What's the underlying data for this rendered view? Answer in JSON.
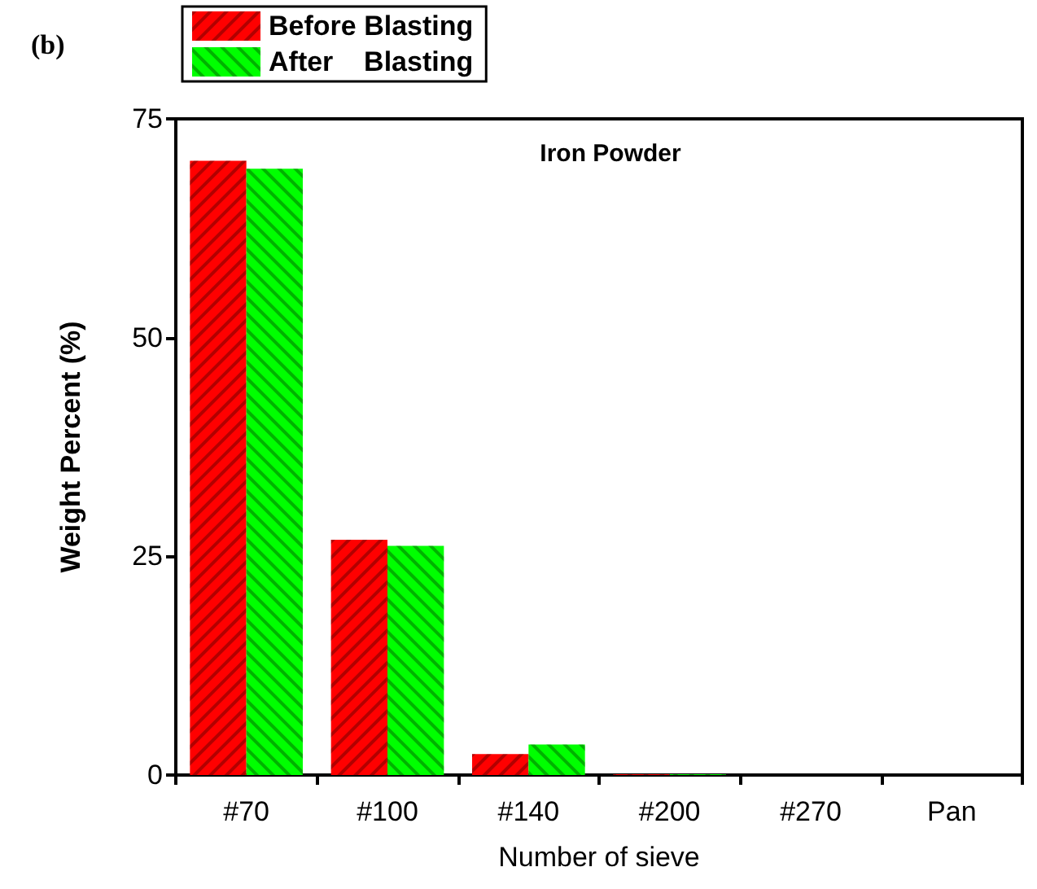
{
  "chart_data": {
    "type": "bar",
    "title": "Iron Powder",
    "xlabel": "Number of sieve",
    "ylabel": "Weight Percent (%)",
    "annotations": [
      "(b)"
    ],
    "categories": [
      "#70",
      "#100",
      "#140",
      "#200",
      "#270",
      "Pan"
    ],
    "series": [
      {
        "name": "Before Blasting",
        "color": "#ff0000",
        "values": [
          70.2,
          26.9,
          2.4,
          0.1,
          0,
          0
        ]
      },
      {
        "name": "After    Blasting",
        "color": "#00ff00",
        "values": [
          69.3,
          26.2,
          3.5,
          0.1,
          0,
          0
        ]
      }
    ],
    "ylim": [
      0,
      75
    ],
    "yticks": [
      0,
      25,
      50,
      75
    ],
    "grid": false,
    "legend": "top left"
  }
}
